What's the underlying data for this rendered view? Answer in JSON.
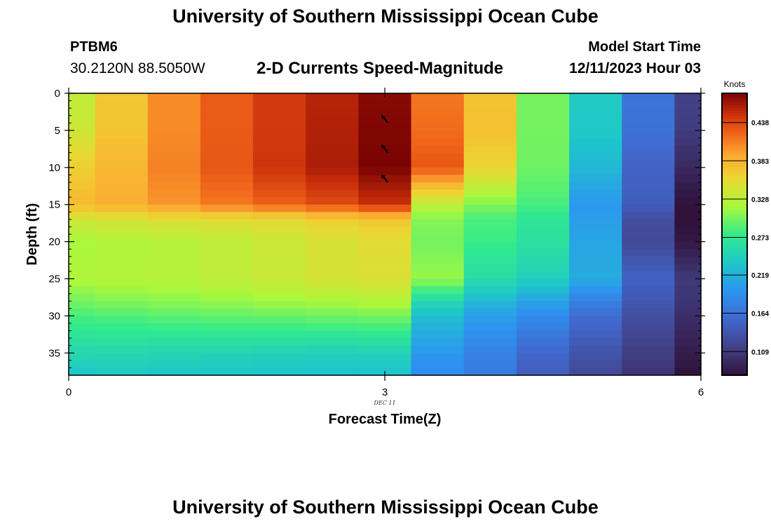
{
  "header": {
    "title": "University of Southern Mississippi Ocean Cube",
    "station": "PTBM6",
    "coordinates": "30.2120N  88.5050W",
    "plot_title": "2-D Currents Speed-Magnitude",
    "model_start_label": "Model Start Time",
    "model_start_value": "12/11/2023 Hour 03"
  },
  "footer": {
    "title": "University of Southern Mississippi Ocean Cube"
  },
  "chart_data": {
    "type": "heatmap",
    "title": "2-D Currents Speed-Magnitude",
    "xlabel": "Forecast Time(Z)",
    "ylabel": "Depth (ft)",
    "x_ticks": [
      "0",
      "3",
      "6"
    ],
    "x_tick_values": [
      0,
      3,
      6
    ],
    "x_sublabel": "DEC 11",
    "xlim": [
      0,
      6
    ],
    "y_ticks": [
      "0",
      "5",
      "10",
      "15",
      "20",
      "25",
      "30",
      "35"
    ],
    "y_tick_values": [
      0,
      5,
      10,
      15,
      20,
      25,
      30,
      35
    ],
    "ylim": [
      0,
      38
    ],
    "y_inverted": true,
    "time_columns": [
      0,
      0.5,
      1,
      1.5,
      2,
      2.5,
      3,
      3.5,
      4,
      4.5,
      5,
      5.5,
      6
    ],
    "depth_samples": [
      0,
      5,
      10,
      15,
      17,
      20,
      25,
      28,
      30,
      35,
      38
    ],
    "speed_knots": [
      [
        0.33,
        0.37,
        0.405,
        0.428,
        0.445,
        0.458,
        0.475,
        0.415,
        0.372,
        0.3,
        0.24,
        0.168,
        0.118
      ],
      [
        0.34,
        0.372,
        0.405,
        0.428,
        0.445,
        0.46,
        0.478,
        0.42,
        0.375,
        0.3,
        0.238,
        0.165,
        0.112
      ],
      [
        0.365,
        0.382,
        0.41,
        0.43,
        0.448,
        0.462,
        0.48,
        0.43,
        0.36,
        0.298,
        0.225,
        0.15,
        0.095
      ],
      [
        0.38,
        0.388,
        0.4,
        0.415,
        0.425,
        0.435,
        0.45,
        0.33,
        0.305,
        0.285,
        0.2,
        0.145,
        0.075
      ],
      [
        0.34,
        0.345,
        0.35,
        0.352,
        0.355,
        0.365,
        0.37,
        0.305,
        0.285,
        0.27,
        0.205,
        0.13,
        0.075
      ],
      [
        0.318,
        0.322,
        0.325,
        0.33,
        0.338,
        0.345,
        0.352,
        0.3,
        0.28,
        0.265,
        0.21,
        0.125,
        0.08
      ],
      [
        0.322,
        0.324,
        0.326,
        0.332,
        0.338,
        0.345,
        0.348,
        0.312,
        0.26,
        0.245,
        0.215,
        0.15,
        0.11
      ],
      [
        0.3,
        0.305,
        0.308,
        0.312,
        0.316,
        0.32,
        0.325,
        0.255,
        0.225,
        0.21,
        0.18,
        0.14,
        0.105
      ],
      [
        0.285,
        0.288,
        0.292,
        0.294,
        0.296,
        0.298,
        0.3,
        0.23,
        0.205,
        0.19,
        0.16,
        0.13,
        0.1
      ],
      [
        0.255,
        0.255,
        0.252,
        0.25,
        0.248,
        0.246,
        0.248,
        0.2,
        0.18,
        0.155,
        0.135,
        0.115,
        0.085
      ],
      [
        0.235,
        0.238,
        0.236,
        0.235,
        0.234,
        0.232,
        0.232,
        0.19,
        0.175,
        0.145,
        0.125,
        0.105,
        0.075
      ]
    ],
    "vectors": [
      {
        "time": 3,
        "depth": 3.5
      },
      {
        "time": 3,
        "depth": 7.5
      },
      {
        "time": 3,
        "depth": 11.5
      }
    ],
    "colorbar": {
      "label": "Knots",
      "ticks": [
        "0.109",
        "0.164",
        "0.219",
        "0.273",
        "0.328",
        "0.383",
        "0.438"
      ],
      "tick_values": [
        0.109,
        0.164,
        0.219,
        0.273,
        0.328,
        0.383,
        0.438
      ],
      "range": [
        0.075,
        0.48
      ],
      "colormap": "turbo"
    }
  }
}
